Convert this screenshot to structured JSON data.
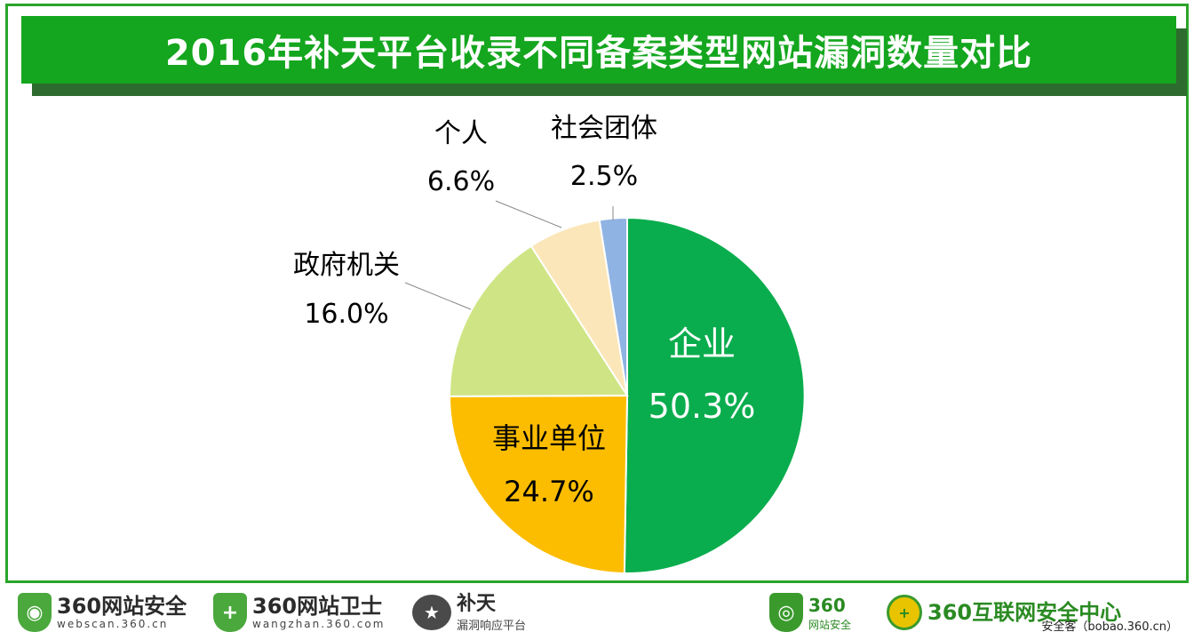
{
  "title": "2016年补天平台收录不同备案类型网站漏洞数量对比",
  "chart_data": {
    "type": "pie",
    "title": "2016年补天平台收录不同备案类型网站漏洞数量对比",
    "slices": [
      {
        "name": "企业",
        "value": 50.3,
        "label": "50.3%",
        "color": "#0aad4d"
      },
      {
        "name": "事业单位",
        "value": 24.7,
        "label": "24.7%",
        "color": "#fcbd00"
      },
      {
        "name": "政府机关",
        "value": 16.0,
        "label": "16.0%",
        "color": "#cfe585"
      },
      {
        "name": "个人",
        "value": 6.6,
        "label": "6.6%",
        "color": "#fbe6b9"
      },
      {
        "name": "社会团体",
        "value": 2.5,
        "label": "2.5%",
        "color": "#8fb3e3"
      }
    ],
    "start_angle": "12 o'clock",
    "direction": "clockwise"
  },
  "footer": {
    "logo1_main": "360网站安全",
    "logo1_sub": "webscan.360.cn",
    "logo2_main": "360网站卫士",
    "logo2_sub": "wangzhan.360.com",
    "logo3_main": "补天",
    "logo3_sub": "漏洞响应平台",
    "logo4_main": "360",
    "logo4_sub": "网站安全",
    "logo5_main": "360互联网安全中心",
    "watermark": "安全客（bobao.360.cn）"
  }
}
